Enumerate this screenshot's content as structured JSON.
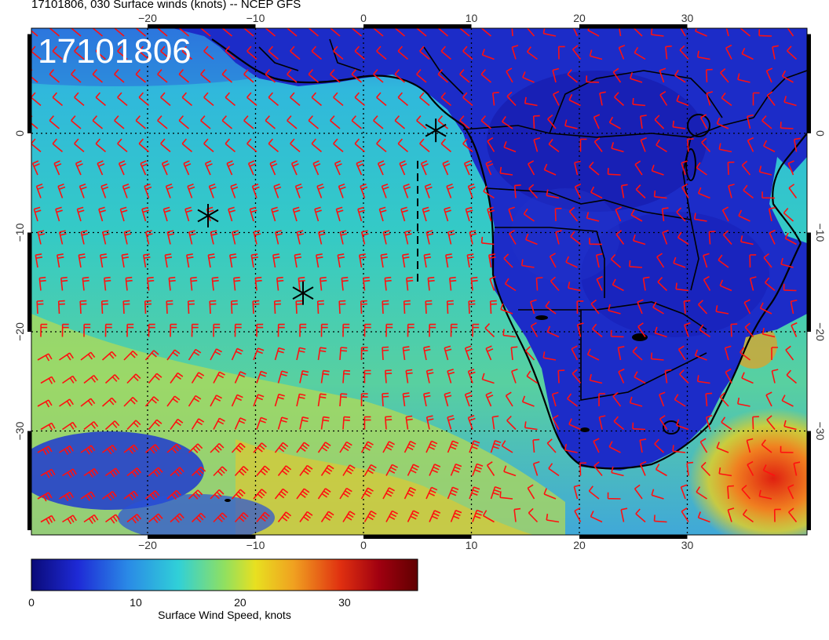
{
  "header": {
    "title": "17101806, 030 Surface winds (knots) -- NCEP GFS"
  },
  "map": {
    "stamp": "17101806",
    "lon_ticks": [
      {
        "value": -20,
        "label": "−20"
      },
      {
        "value": -10,
        "label": "−10"
      },
      {
        "value": 0,
        "label": "0"
      },
      {
        "value": 10,
        "label": "10"
      },
      {
        "value": 20,
        "label": "20"
      },
      {
        "value": 30,
        "label": "30"
      }
    ],
    "lat_ticks": [
      {
        "value": 0,
        "label": "0"
      },
      {
        "value": -10,
        "label": "−10"
      },
      {
        "value": -20,
        "label": "−20"
      },
      {
        "value": -30,
        "label": "−30"
      }
    ],
    "markers": [
      {
        "name": "storm-marker-1",
        "lon": 6.7,
        "lat": 0.3
      },
      {
        "name": "storm-marker-2",
        "lon": -14.4,
        "lat": -8.3
      },
      {
        "name": "storm-marker-3",
        "lon": -5.6,
        "lat": -16.1
      }
    ],
    "colors": {
      "barb": "#ff1010",
      "coast": "#000000",
      "grid": "#000000"
    }
  },
  "colorbar": {
    "label": "Surface Wind Speed, knots",
    "ticks": [
      {
        "value": 0,
        "label": "0"
      },
      {
        "value": 10,
        "label": "10"
      },
      {
        "value": 20,
        "label": "20"
      },
      {
        "value": 30,
        "label": "30"
      }
    ],
    "range": [
      0,
      37
    ],
    "colormap": [
      "#0a0a78",
      "#1e2ad6",
      "#2a8ae6",
      "#30d0d8",
      "#90e060",
      "#e8e020",
      "#f0a020",
      "#e03010",
      "#a00010",
      "#600000"
    ]
  }
}
